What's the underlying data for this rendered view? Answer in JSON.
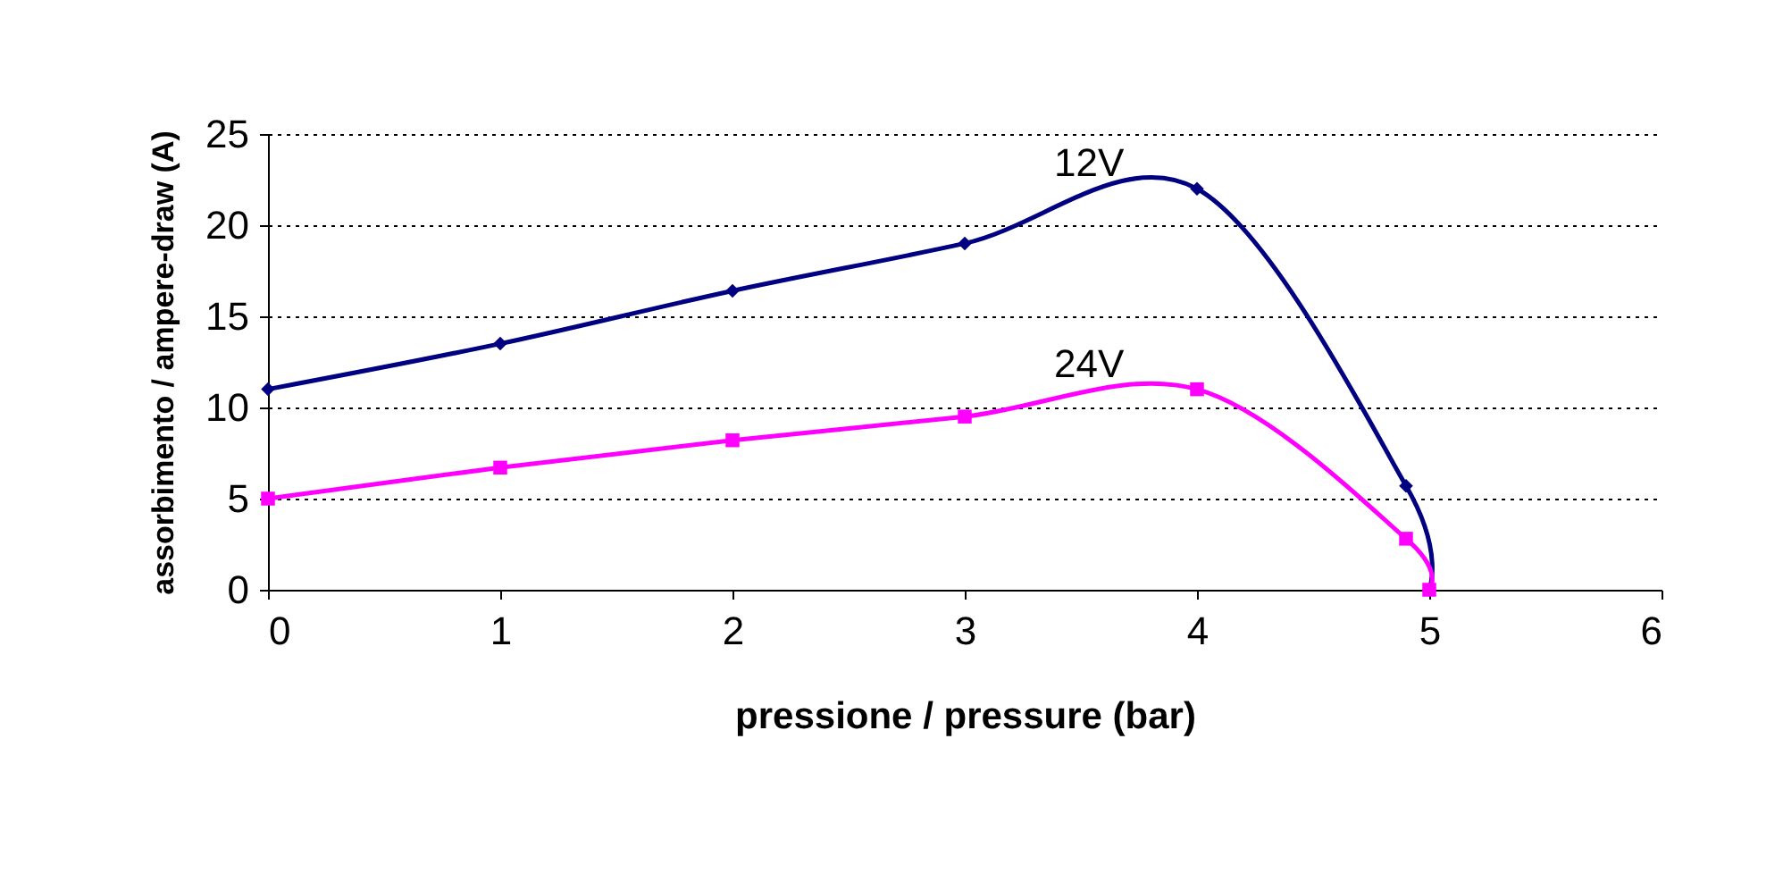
{
  "chart_data": {
    "type": "line",
    "xlabel": "pressione / pressure (bar)",
    "ylabel": "assorbimento / ampere-draw (A)",
    "x": [
      0,
      1,
      2,
      3,
      4,
      4.9,
      5
    ],
    "series": [
      {
        "name": "12V",
        "color": "#000080",
        "marker": "diamond",
        "values": [
          11,
          13.5,
          16.4,
          19,
          22,
          5.7,
          0
        ]
      },
      {
        "name": "24V",
        "color": "#ff00ff",
        "marker": "square",
        "values": [
          5,
          6.7,
          8.2,
          9.5,
          11,
          2.8,
          0
        ]
      }
    ],
    "xlim": [
      0,
      6
    ],
    "xticks": [
      0,
      1,
      2,
      3,
      4,
      5,
      6
    ],
    "ylim": [
      0,
      25
    ],
    "yticks": [
      0,
      5,
      10,
      15,
      20,
      25
    ],
    "grid": "y",
    "line_style": "solid"
  }
}
